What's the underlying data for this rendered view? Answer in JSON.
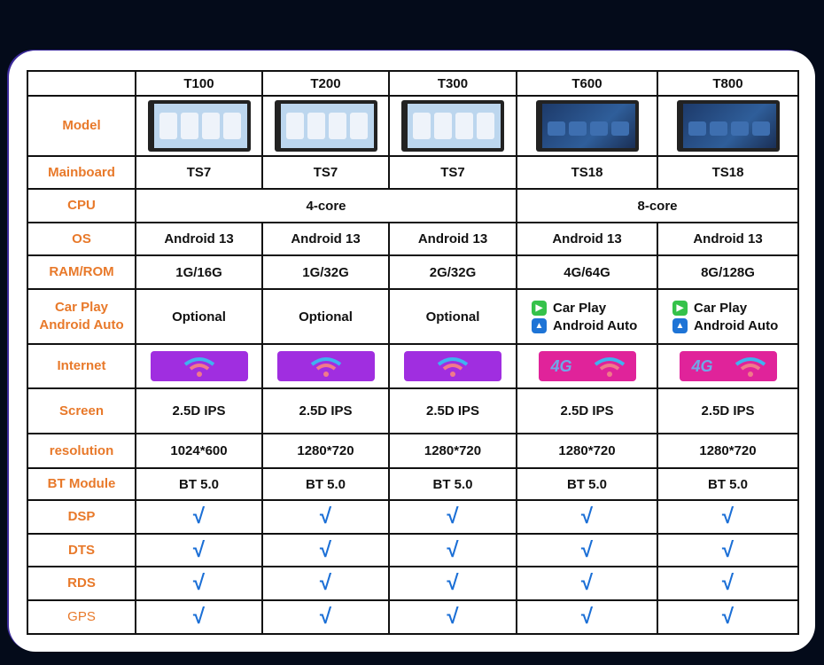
{
  "columns": [
    "T100",
    "T200",
    "T300",
    "T600",
    "T800"
  ],
  "rows": {
    "model": {
      "label": "Model"
    },
    "mainboard": {
      "label": "Mainboard",
      "values": [
        "TS7",
        "TS7",
        "TS7",
        "TS18",
        "TS18"
      ]
    },
    "cpu": {
      "label": "CPU",
      "values": [
        "4-core",
        "8-core"
      ]
    },
    "os": {
      "label": "OS",
      "values": [
        "Android 13",
        "Android 13",
        "Android 13",
        "Android 13",
        "Android 13"
      ]
    },
    "ram": {
      "label": "RAM/ROM",
      "values": [
        "1G/16G",
        "1G/32G",
        "2G/32G",
        "4G/64G",
        "8G/128G"
      ]
    },
    "carplay": {
      "label_1": "Car Play",
      "label_2": "Android Auto",
      "values": [
        "Optional",
        "Optional",
        "Optional"
      ],
      "carplay": "Car Play",
      "androidauto": "Android Auto"
    },
    "internet": {
      "label": "Internet",
      "badge_4g": "4G",
      "colors": {
        "wifi_only": "#a02ee0",
        "4g_wifi": "#e0239a"
      }
    },
    "screen": {
      "label": "Screen",
      "values": [
        "2.5D IPS",
        "2.5D IPS",
        "2.5D IPS",
        "2.5D IPS",
        "2.5D IPS"
      ]
    },
    "resolution": {
      "label": "resolution",
      "values": [
        "1024*600",
        "1280*720",
        "1280*720",
        "1280*720",
        "1280*720"
      ]
    },
    "bt": {
      "label": "BT Module",
      "values": [
        "BT 5.0",
        "BT 5.0",
        "BT 5.0",
        "BT 5.0",
        "BT 5.0"
      ]
    },
    "dsp": {
      "label": "DSP"
    },
    "dts": {
      "label": "DTS"
    },
    "rds": {
      "label": "RDS"
    },
    "gps": {
      "label": "GPS"
    }
  },
  "check": "√",
  "colors": {
    "label": "#e8792a",
    "check": "#1b6fd6",
    "background": "#040b1a"
  }
}
